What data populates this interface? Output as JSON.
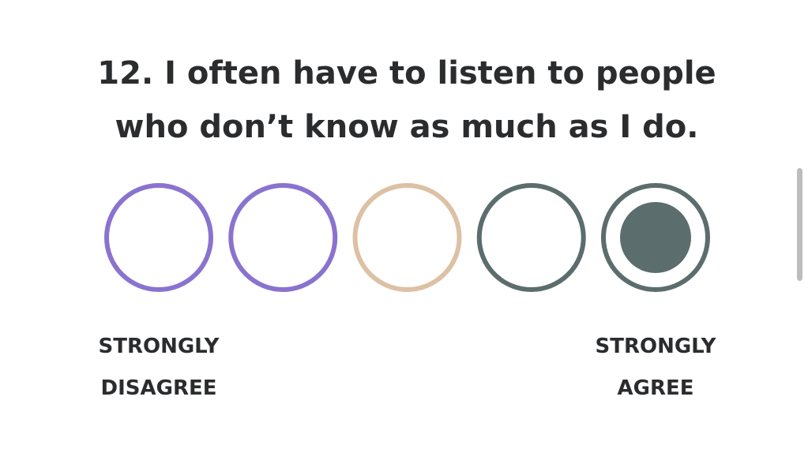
{
  "question": {
    "lines": [
      "12. I often have to listen to people",
      "who don’t know as much as I do."
    ]
  },
  "scale": {
    "options": [
      {
        "color": "#8a73cf"
      },
      {
        "color": "#8a73cf"
      },
      {
        "color": "#dcc1a4"
      },
      {
        "color": "#5b6d6c"
      },
      {
        "color": "#5b6d6c"
      }
    ],
    "selected": 4,
    "left_label": [
      "STRONGLY",
      "DISAGREE"
    ],
    "right_label": [
      "STRONGLY",
      "AGREE"
    ]
  }
}
